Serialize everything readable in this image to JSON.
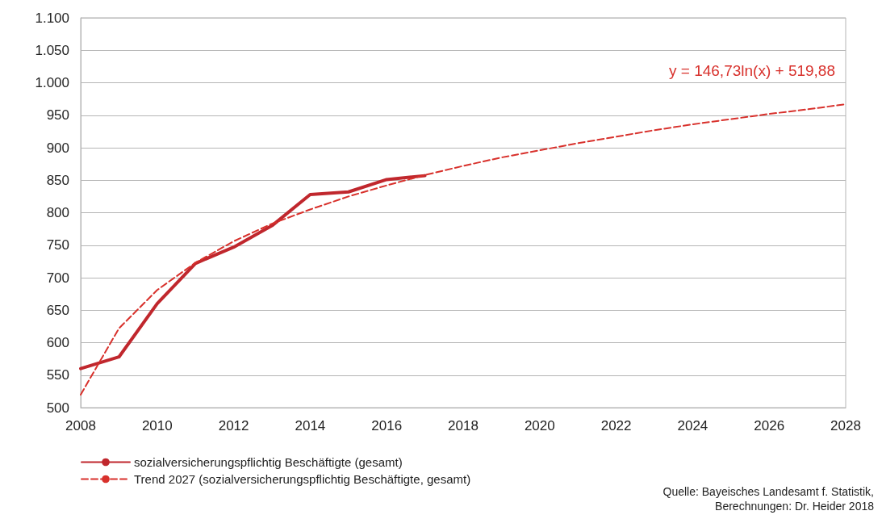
{
  "chart_data": {
    "type": "line",
    "x": [
      2008,
      2009,
      2010,
      2011,
      2012,
      2013,
      2014,
      2015,
      2016,
      2017
    ],
    "series": [
      {
        "name": "sozialversicherungspflichtig Beschäftigte (gesamt)",
        "color": "#c0272d",
        "line_style": "solid",
        "values": [
          560,
          578,
          660,
          722,
          747,
          780,
          828,
          832,
          851,
          857
        ]
      },
      {
        "name": "Trend 2027 (sozialversicherungspflichtig Beschäftigte, gesamt)",
        "color": "#d8312c",
        "line_style": "dashed",
        "x": [
          2008,
          2009,
          2010,
          2011,
          2012,
          2013,
          2014,
          2015,
          2016,
          2017,
          2018,
          2019,
          2020,
          2021,
          2022,
          2023,
          2024,
          2025,
          2026,
          2027,
          2028
        ],
        "values": [
          520,
          622,
          681,
          723,
          756,
          783,
          805,
          825,
          842,
          858,
          872,
          885,
          896,
          907,
          917,
          927,
          936,
          944,
          952,
          959,
          967
        ]
      }
    ],
    "xlim": [
      2008,
      2028
    ],
    "xticks": [
      2008,
      2010,
      2012,
      2014,
      2016,
      2018,
      2020,
      2022,
      2024,
      2026,
      2028
    ],
    "ylim": [
      500,
      1100
    ],
    "yticks": [
      {
        "value": 500,
        "label": "500"
      },
      {
        "value": 550,
        "label": "550"
      },
      {
        "value": 600,
        "label": "600"
      },
      {
        "value": 650,
        "label": "650"
      },
      {
        "value": 700,
        "label": "700"
      },
      {
        "value": 750,
        "label": "750"
      },
      {
        "value": 800,
        "label": "800"
      },
      {
        "value": 850,
        "label": "850"
      },
      {
        "value": 900,
        "label": "900"
      },
      {
        "value": 950,
        "label": "950"
      },
      {
        "value": 1000,
        "label": "1.000"
      },
      {
        "value": 1050,
        "label": "1.050"
      },
      {
        "value": 1100,
        "label": "1.100"
      }
    ],
    "grid": "y",
    "legend": "bottom left",
    "marker": "none",
    "annotations": [
      "y = 146,73ln(x) + 519,88",
      "Quelle: Bayeisches Landesamt f. Statistik,\nBerechnungen: Dr. Heider 2018"
    ]
  }
}
